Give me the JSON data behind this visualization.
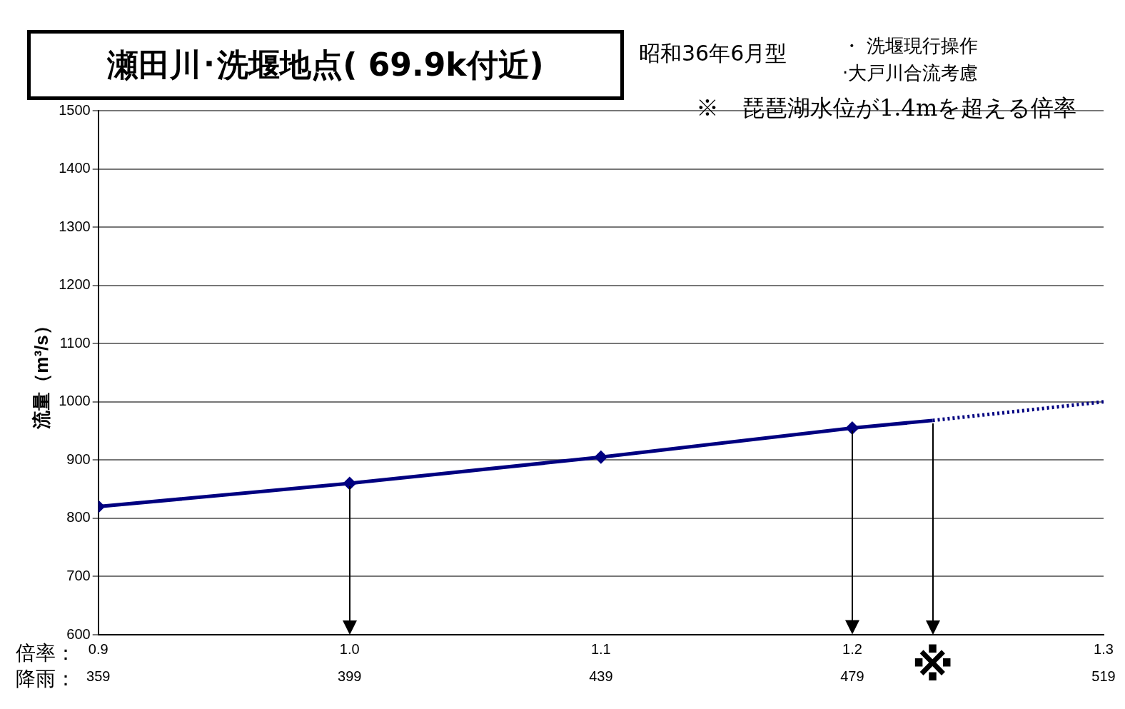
{
  "chart_data": {
    "type": "line",
    "title": "瀬田川･洗堰地点( 69.9k付近)",
    "subtitle": "昭和36年6月型",
    "ylabel": "流量（m³/s）",
    "xlabel": "倍率：",
    "x2label": "降雨：",
    "xlim": [
      0.9,
      1.3
    ],
    "xticks": [
      {
        "value": 0.9,
        "label": "0.9"
      },
      {
        "value": 1.0,
        "label": "1.0"
      },
      {
        "value": 1.1,
        "label": "1.1"
      },
      {
        "value": 1.2,
        "label": "1.2"
      },
      {
        "value": 1.3,
        "label": "1.3"
      }
    ],
    "x2lim": [
      359,
      519
    ],
    "x2ticks": [
      359,
      399,
      439,
      479,
      519
    ],
    "ylim": [
      600,
      1500
    ],
    "yticks": [
      600,
      700,
      800,
      900,
      1000,
      1100,
      1200,
      1300,
      1400,
      1500
    ],
    "grid": "y",
    "legend": false,
    "series": [
      {
        "color": "#000080",
        "x": [
          0.9,
          1.0,
          1.1,
          1.2
        ],
        "values": [
          820,
          860,
          905,
          955
        ],
        "marker": "diamond",
        "line_style": "solid"
      },
      {
        "color": "#000080",
        "x": [
          1.2,
          1.232
        ],
        "values": [
          955,
          968
        ],
        "marker": "none",
        "line_style": "solid"
      },
      {
        "color": "#000080",
        "x": [
          1.232,
          1.3
        ],
        "values": [
          968,
          1000
        ],
        "marker": "none",
        "line_style": "dotted"
      }
    ],
    "annotations": [
      "・ 洗堰現行操作",
      "·大戸川合流考慮",
      "※　琵琶湖水位が1.4mを超える倍率",
      {
        "text": "※",
        "x": 1.232,
        "y": 968
      }
    ]
  }
}
